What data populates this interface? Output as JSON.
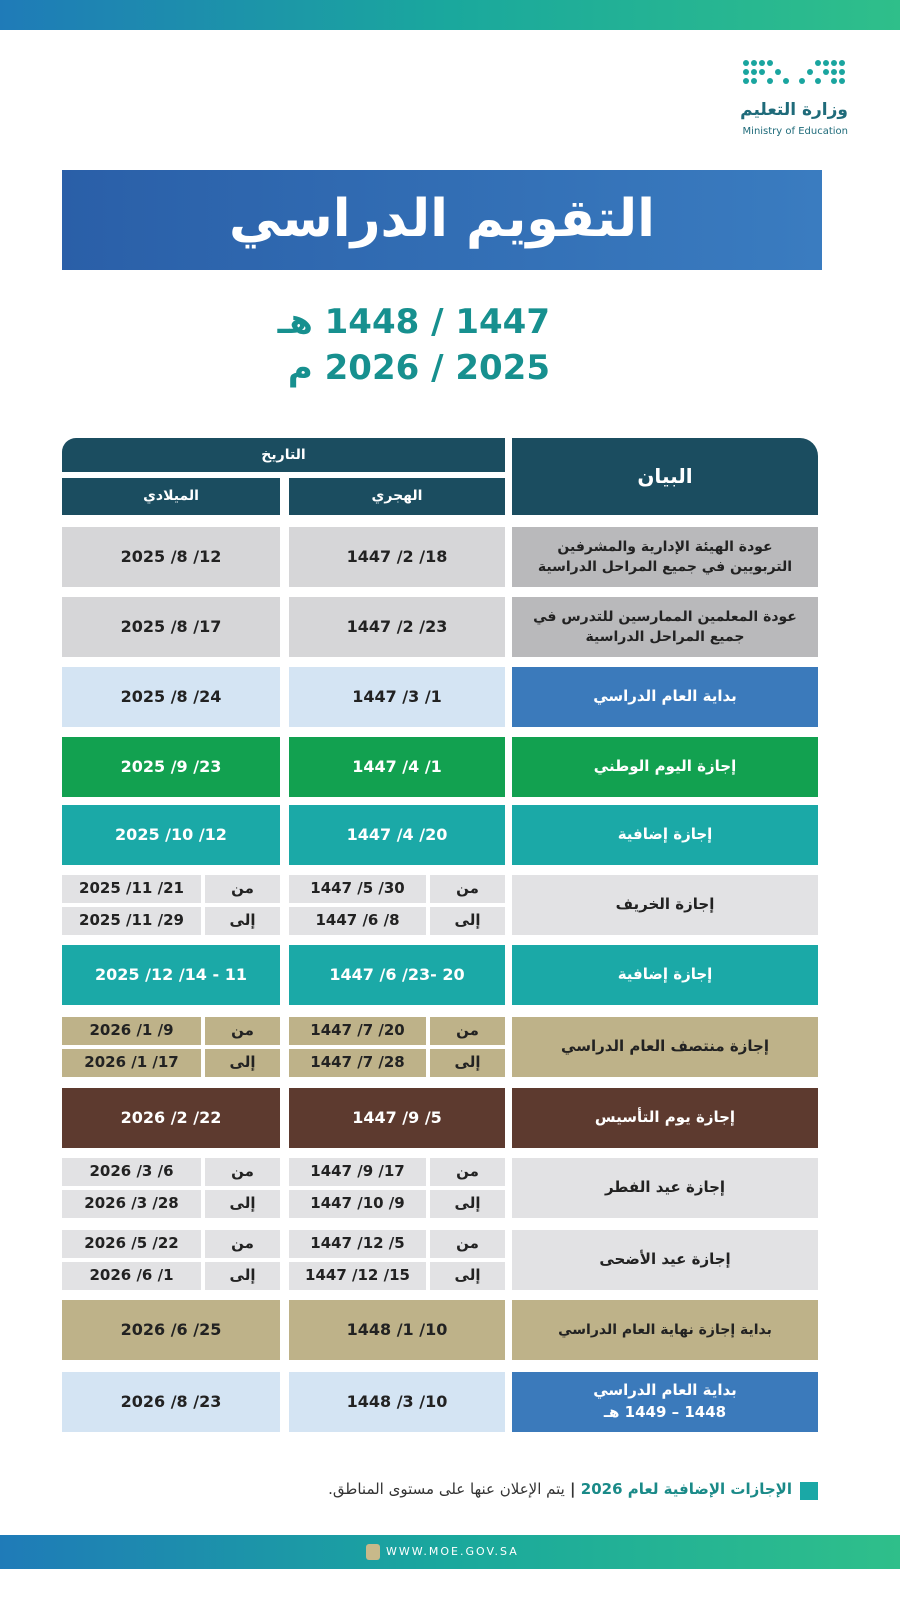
{
  "header": {
    "ministry_ar": "وزارة التعليم",
    "ministry_en": "Ministry of Education",
    "title": "التقويم الدراسي",
    "year_hijri": "1447 / 1448 هـ",
    "year_gregorian": "2025 / 2026 م"
  },
  "table": {
    "col_statement": "البيان",
    "col_date": "التاريخ",
    "col_hijri": "الهجري",
    "col_gregorian": "الميلادي",
    "from_label": "من",
    "to_label": "إلى",
    "rows": [
      {
        "label": "عودة الهيئة الإدارية والمشرفين التربويين في جميع المراحل الدراسية",
        "hijri": "1447 /2 /18",
        "gregorian": "2025 /8 /12"
      },
      {
        "label": "عودة المعلمين الممارسين للتدرس في جميع المراحل الدراسية",
        "hijri": "1447 /2 /23",
        "gregorian": "2025 /8 /17"
      },
      {
        "label": "بداية العام الدراسي",
        "hijri": "1447 /3 /1",
        "gregorian": "2025 /8 /24"
      },
      {
        "label": "إجازة اليوم الوطني",
        "hijri": "1447 /4 /1",
        "gregorian": "2025 /9 /23"
      },
      {
        "label": "إجازة إضافية",
        "hijri": "1447 /4 /20",
        "gregorian": "2025 /10 /12"
      },
      {
        "label": "إجازة الخريف",
        "hijri_from": "1447 /5 /30",
        "hijri_to": "1447 /6 /8",
        "gregorian_from": "2025 /11 /21",
        "gregorian_to": "2025 /11 /29"
      },
      {
        "label": "إجازة إضافية",
        "hijri": "1447 /6 /23- 20",
        "gregorian": "2025 /12 /14 - 11"
      },
      {
        "label": "إجازة منتصف العام الدراسي",
        "hijri_from": "1447 /7 /20",
        "hijri_to": "1447 /7 /28",
        "gregorian_from": "2026 /1 /9",
        "gregorian_to": "2026 /1 /17"
      },
      {
        "label": "إجازة يوم التأسيس",
        "hijri": "1447 /9 /5",
        "gregorian": "2026 /2 /22"
      },
      {
        "label": "إجازة عيد الفطر",
        "hijri_from": "1447 /9 /17",
        "hijri_to": "1447 /10 /9",
        "gregorian_from": "2026 /3 /6",
        "gregorian_to": "2026 /3 /28"
      },
      {
        "label": "إجازة عيد الأضحى",
        "hijri_from": "1447 /12 /5",
        "hijri_to": "1447 /12 /15",
        "gregorian_from": "2026 /5 /22",
        "gregorian_to": "2026 /6 /1"
      },
      {
        "label": "بداية إجازة نهاية العام الدراسي",
        "hijri": "1448 /1 /10",
        "gregorian": "2026 /6 /25"
      },
      {
        "label": "بداية العام الدراسي",
        "label_note": "1448 – 1449 هـ",
        "hijri": "1448 /3 /10",
        "gregorian": "2026 /8 /23"
      }
    ]
  },
  "footer": {
    "note_bold": "الإجازات الإضافية لعام 2026",
    "note": "يتم الإعلان عنها على مستوى المناطق.",
    "website": "WWW.MOE.GOV.SA"
  }
}
